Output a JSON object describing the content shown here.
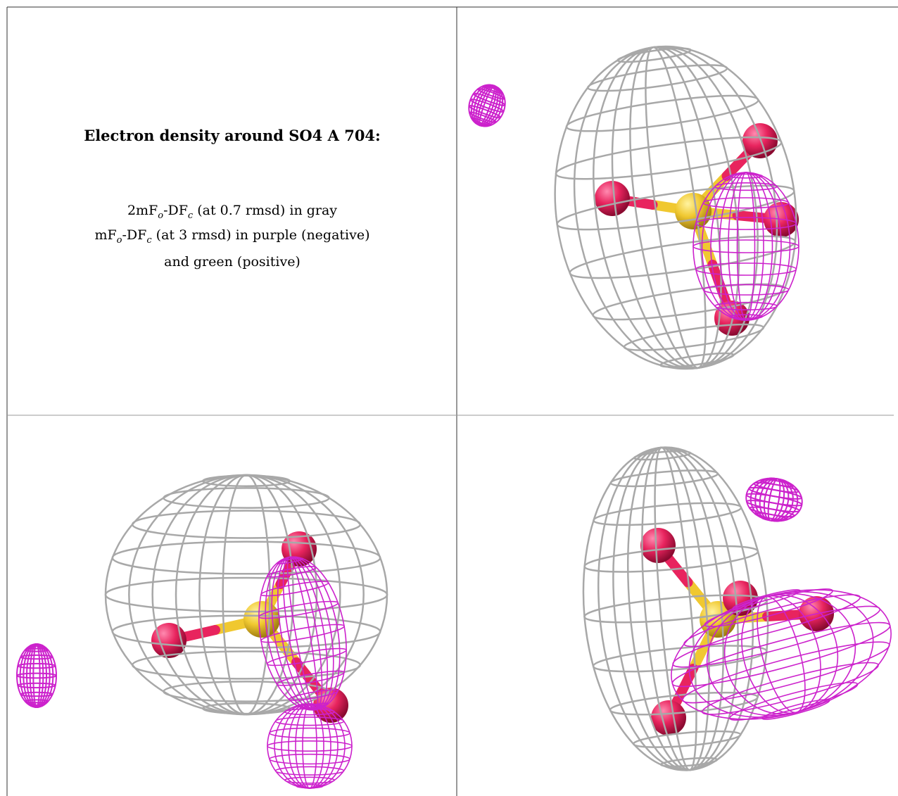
{
  "panel": {
    "title": "Electron density around SO4 A 704:",
    "lines": [
      [
        "2mF",
        "o",
        "-DF",
        "c",
        " (at 0.7 rmsd) in gray"
      ],
      [
        "mF",
        "o",
        "-DF",
        "c",
        " (at 3 rmsd) in purple (negative)"
      ],
      [
        "and green (positive)"
      ]
    ]
  }
}
